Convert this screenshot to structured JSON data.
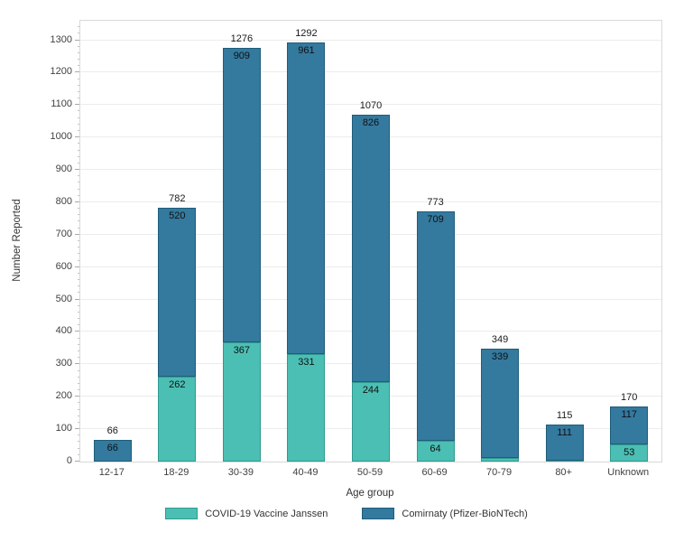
{
  "chart_data": {
    "type": "bar",
    "stacked": true,
    "title": "",
    "xlabel": "Age group",
    "ylabel": "Number Reported",
    "categories": [
      "12-17",
      "18-29",
      "30-39",
      "40-49",
      "50-59",
      "60-69",
      "70-79",
      "80+",
      "Unknown"
    ],
    "series": [
      {
        "name": "COVID-19 Vaccine Janssen",
        "color": "#4bbfb4",
        "border_color": "#2f9a90",
        "values": [
          0,
          262,
          367,
          331,
          244,
          64,
          10,
          4,
          53
        ]
      },
      {
        "name": "Comirnaty (Pfizer-BioNTech)",
        "color": "#34799e",
        "border_color": "#1f5d7a",
        "values": [
          66,
          520,
          909,
          961,
          826,
          709,
          339,
          111,
          117
        ]
      }
    ],
    "totals": [
      66,
      782,
      1276,
      1292,
      1070,
      773,
      349,
      115,
      170
    ],
    "yticks": [
      0,
      100,
      200,
      300,
      400,
      500,
      600,
      700,
      800,
      900,
      1000,
      1100,
      1200,
      1300
    ],
    "ylim": [
      0,
      1360
    ],
    "grid": true,
    "legend_position": "bottom",
    "gridline_color": "#ececec",
    "panel_border_color": "#d9d9d9"
  }
}
